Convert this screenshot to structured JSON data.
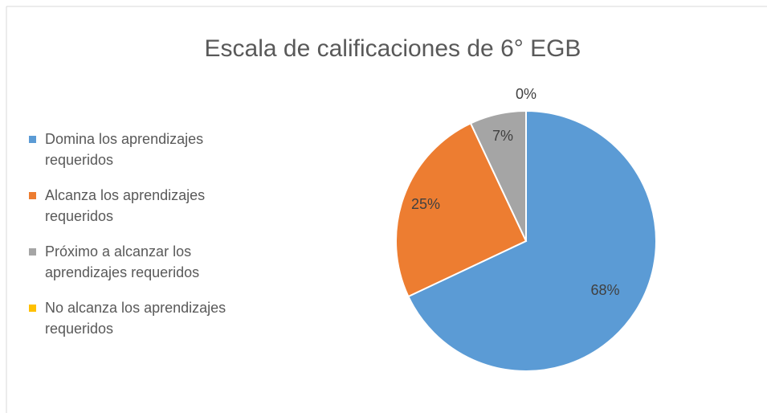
{
  "chart_data": {
    "type": "pie",
    "title": "Escala de calificaciones de 6° EGB",
    "categories": [
      "Domina los aprendizajes requeridos",
      "Alcanza los aprendizajes requeridos",
      "Próximo a alcanzar los aprendizajes requeridos",
      "No alcanza los aprendizajes requeridos"
    ],
    "values": [
      68,
      25,
      7,
      0
    ],
    "value_labels": [
      "68%",
      "25%",
      "7%",
      "0%"
    ],
    "colors": [
      "#5b9bd5",
      "#ed7d31",
      "#a5a5a5",
      "#ffc000"
    ],
    "legend": "left"
  }
}
